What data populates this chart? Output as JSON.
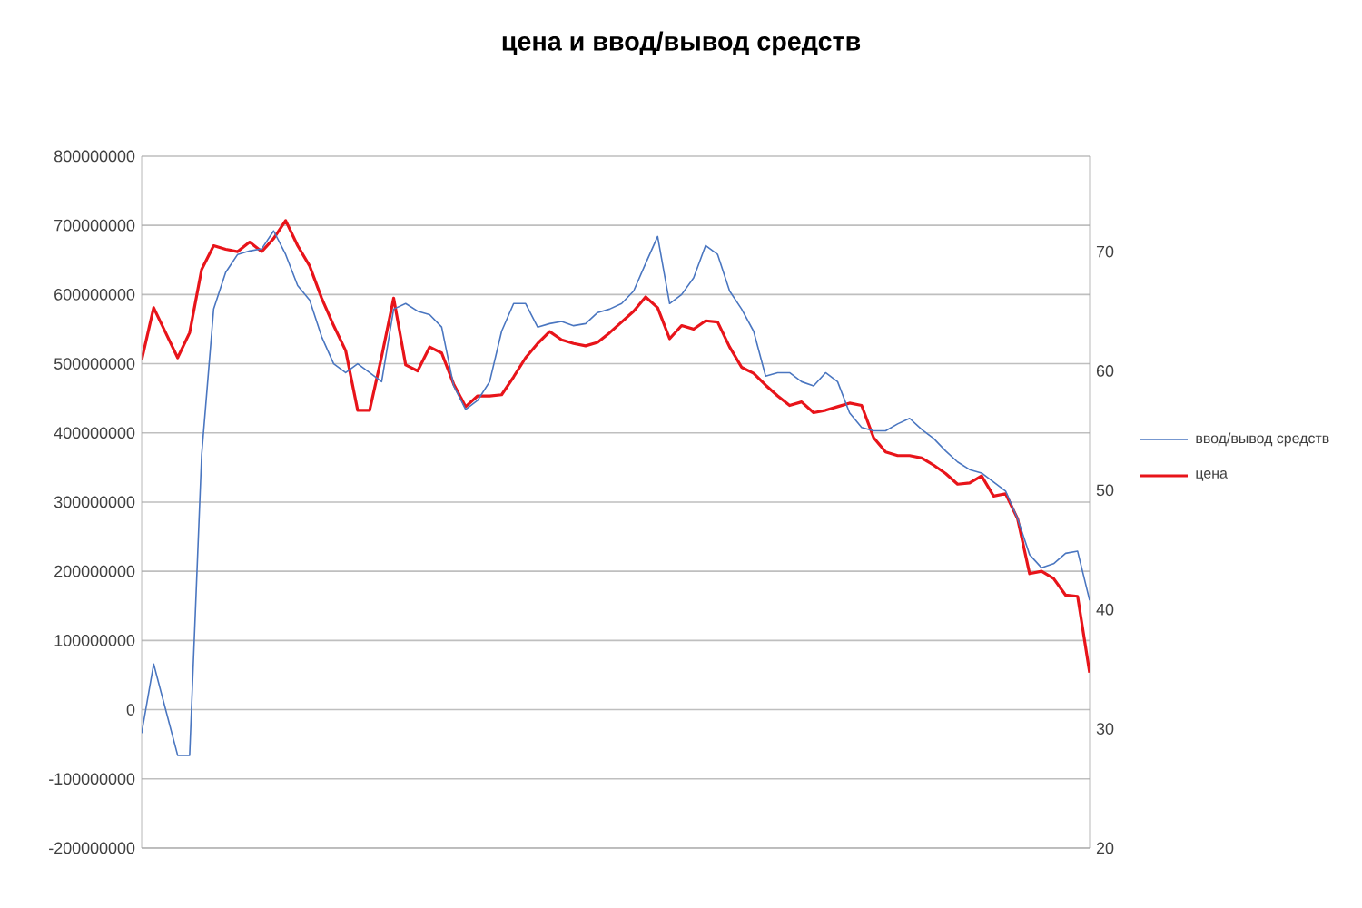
{
  "chart_data": {
    "type": "line",
    "title": "**цена и ввод/вывод средств**",
    "categories": [
      null,
      null,
      null,
      null,
      null,
      null,
      null,
      null,
      null,
      null,
      null,
      null,
      null,
      null,
      null,
      null,
      null,
      null,
      null,
      null,
      null,
      null,
      null,
      null,
      null,
      null,
      null,
      null,
      null,
      null,
      null,
      null,
      null,
      null,
      null,
      null,
      null,
      null,
      null,
      null,
      null,
      null,
      null,
      null,
      null,
      null,
      null,
      null,
      null,
      null,
      null,
      null,
      null,
      null,
      null,
      null,
      null,
      null,
      null,
      null,
      null,
      null,
      null,
      null,
      null,
      null,
      null,
      null,
      null,
      null,
      null,
      null,
      null,
      null,
      null,
      null,
      null,
      null,
      null,
      null
    ],
    "series": [
      {
        "name": "ввод/вывод средств",
        "color": "#4a76c0",
        "values": [
          -34000000,
          66000000,
          0,
          -66000000,
          -66000000,
          368000000,
          579000000,
          632000000,
          658000000,
          663000000,
          666000000,
          692000000,
          658000000,
          613000000,
          592000000,
          539000000,
          500000000,
          487000000,
          500000000,
          487000000,
          474000000,
          579000000,
          587000000,
          576000000,
          571000000,
          553000000,
          468000000,
          434000000,
          447000000,
          474000000,
          547000000,
          587000000,
          587000000,
          553000000,
          558000000,
          561000000,
          555000000,
          558000000,
          574000000,
          579000000,
          587000000,
          605000000,
          645000000,
          684000000,
          587000000,
          600000000,
          624000000,
          671000000,
          658000000,
          605000000,
          579000000,
          547000000,
          482000000,
          487000000,
          487000000,
          474000000,
          468000000,
          487000000,
          474000000,
          429000000,
          408000000,
          403000000,
          403000000,
          413000000,
          421000000,
          405000000,
          392000000,
          374000000,
          358000000,
          347000000,
          342000000,
          329000000,
          316000000,
          276000000,
          224000000,
          205000000,
          211000000,
          226000000,
          229000000,
          158000000
        ]
      },
      {
        "name": "цена",
        "color": "#e8141a",
        "axis": "y2",
        "values": [
          60.9,
          65.3,
          63.2,
          61.1,
          63.2,
          68.5,
          70.5,
          70.2,
          70.0,
          70.8,
          70.0,
          71.1,
          72.6,
          70.5,
          68.8,
          66.1,
          63.8,
          61.7,
          56.7,
          56.7,
          61.2,
          66.1,
          60.5,
          60.0,
          62.0,
          61.5,
          58.9,
          57.0,
          57.9,
          57.9,
          58.0,
          59.5,
          61.1,
          62.3,
          63.3,
          62.6,
          62.3,
          62.1,
          62.4,
          63.2,
          64.1,
          65.0,
          66.2,
          65.3,
          62.7,
          63.8,
          63.5,
          64.2,
          64.1,
          62.0,
          60.3,
          59.8,
          58.8,
          57.9,
          57.1,
          57.4,
          56.5,
          56.7,
          57.0,
          57.3,
          57.1,
          54.4,
          53.2,
          52.9,
          52.9,
          52.7,
          52.1,
          51.4,
          50.5,
          50.6,
          51.2,
          49.5,
          49.7,
          47.6,
          43.0,
          43.2,
          42.6,
          41.2,
          41.1,
          34.7
        ]
      }
    ],
    "ylim": [
      -200000000,
      800000000
    ],
    "yticks": [
      -200000000,
      -100000000,
      0,
      100000000,
      200000000,
      300000000,
      400000000,
      500000000,
      600000000,
      700000000,
      800000000
    ],
    "y2lim": [
      20,
      78
    ],
    "y2ticks": [
      20,
      30,
      40,
      50,
      60,
      70
    ],
    "grid": "y",
    "legend": "right"
  }
}
